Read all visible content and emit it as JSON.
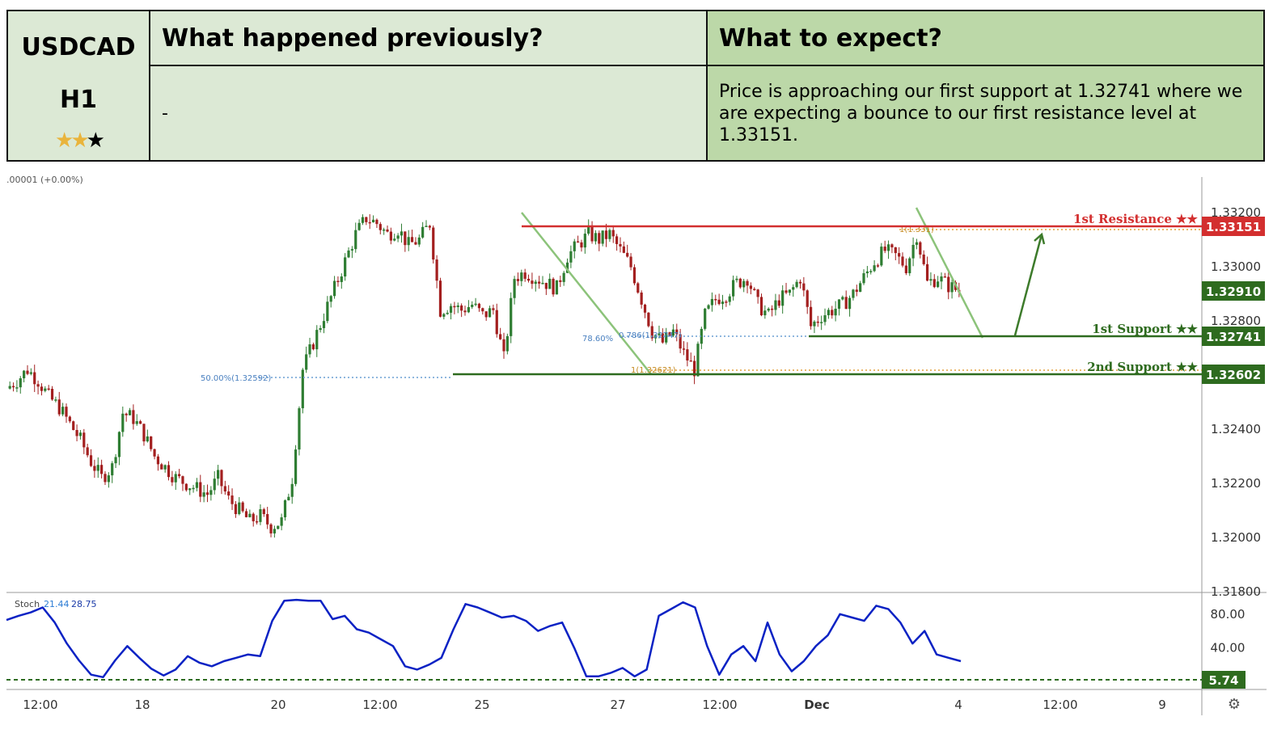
{
  "header": {
    "symbol": "USDCAD",
    "timeframe": "H1",
    "rating": {
      "filled": 2,
      "total": 3
    },
    "previously_title": "What happened previously?",
    "previously_text": "-",
    "expect_title": "What to expect?",
    "expect_text": "Price is approaching our first support at 1.32741 where we are expecting a bounce to our first resistance level at 1.33151."
  },
  "chart_meta": {
    "change_label": ".00001 (+0.00%)",
    "settings_icon": "gear-icon"
  },
  "chart_data": [
    {
      "type": "candlestick",
      "x_tick_labels": [
        "12:00",
        "18",
        "20",
        "12:00",
        "25",
        "27",
        "12:00",
        "Dec",
        "4",
        "12:00",
        "9"
      ],
      "y_tick_labels": [
        "1.33200",
        "1.33000",
        "1.32800",
        "1.32400",
        "1.32200",
        "1.32000",
        "1.31800"
      ],
      "ylim": [
        1.318,
        1.3335
      ],
      "approx_close_path": [
        1.3255,
        1.3258,
        1.3262,
        1.3258,
        1.3252,
        1.3248,
        1.3242,
        1.3236,
        1.3228,
        1.3222,
        1.3226,
        1.3246,
        1.3244,
        1.3238,
        1.323,
        1.3226,
        1.3222,
        1.322,
        1.3218,
        1.3216,
        1.3222,
        1.3214,
        1.321,
        1.3206,
        1.3208,
        1.3204,
        1.3206,
        1.3222,
        1.3262,
        1.3272,
        1.3282,
        1.3292,
        1.3302,
        1.3312,
        1.3318,
        1.3316,
        1.3312,
        1.3314,
        1.3308,
        1.331,
        1.3316,
        1.3284,
        1.3286,
        1.3284,
        1.3286,
        1.3282,
        1.3284,
        1.3266,
        1.3296,
        1.3298,
        1.3296,
        1.3294,
        1.3292,
        1.3304,
        1.3308,
        1.3312,
        1.331,
        1.3312,
        1.3306,
        1.33,
        1.3288,
        1.3276,
        1.3272,
        1.3276,
        1.3268,
        1.3262,
        1.3282,
        1.3288,
        1.329,
        1.3294,
        1.3296,
        1.3286,
        1.3282,
        1.3288,
        1.329,
        1.3296,
        1.3278,
        1.3282,
        1.3284,
        1.3286,
        1.329,
        1.3296,
        1.3302,
        1.3306,
        1.3304,
        1.33,
        1.3312,
        1.3294,
        1.3296,
        1.3293,
        1.3291
      ],
      "levels": [
        {
          "name": "1st Resistance",
          "stars": "★★",
          "value": "1.33151",
          "color": "#d32f2f"
        },
        {
          "name": "1st Support",
          "stars": "★★",
          "value": "1.32741",
          "color": "#2e6b1f"
        },
        {
          "name": "2nd Support",
          "stars": "★★",
          "value": "1.32602",
          "color": "#2e6b1f"
        }
      ],
      "current_price": "1.32910",
      "fib_labels": [
        "50.00%(1.32592)",
        "78.60%",
        "0.786(1.32747)",
        "1(1.32621)",
        "1(1.331)"
      ],
      "colors": {
        "up": "#2e7d32",
        "down": "#a31f1f",
        "current": "#2e6b1f"
      }
    },
    {
      "type": "line",
      "name": "Stoch",
      "k_value": "21.44",
      "d_value": "28.75",
      "y_tick_labels": [
        "80.00",
        "40.00"
      ],
      "oversold_label": "5.74",
      "ylim": [
        0,
        100
      ],
      "values": [
        73,
        78,
        82,
        88,
        70,
        45,
        25,
        8,
        5,
        25,
        42,
        28,
        15,
        7,
        14,
        30,
        22,
        18,
        24,
        28,
        32,
        30,
        72,
        96,
        97,
        96,
        96,
        74,
        78,
        62,
        58,
        50,
        42,
        18,
        14,
        20,
        28,
        62,
        92,
        88,
        82,
        76,
        78,
        72,
        60,
        66,
        70,
        40,
        6,
        6,
        10,
        16,
        6,
        14,
        78,
        86,
        94,
        88,
        42,
        8,
        32,
        42,
        24,
        70,
        32,
        12,
        24,
        42,
        55,
        80,
        76,
        72,
        90,
        86,
        70,
        45,
        60,
        32,
        28,
        24
      ],
      "color": "#0b22c4"
    }
  ]
}
